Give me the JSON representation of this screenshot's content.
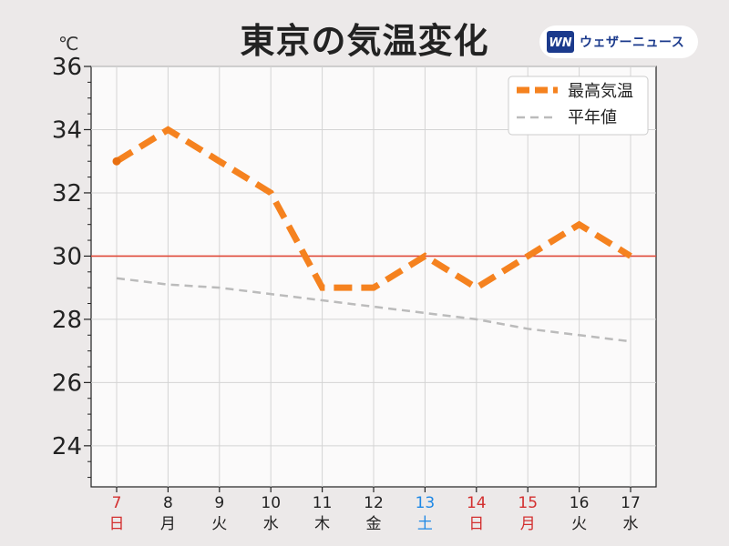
{
  "brand": {
    "logo_text": "ウェザーニュース",
    "accent": "#1b3a8c"
  },
  "chart_data": {
    "type": "line",
    "title": "東京の気温変化",
    "unit": "℃",
    "ylim": [
      22.7,
      36
    ],
    "yticks": [
      24,
      26,
      28,
      30,
      32,
      34,
      36
    ],
    "grid": true,
    "legend_position": "top-right",
    "categories": [
      {
        "day": "7",
        "weekday": "日",
        "color": "#d32f2f"
      },
      {
        "day": "8",
        "weekday": "月",
        "color": "#222222"
      },
      {
        "day": "9",
        "weekday": "火",
        "color": "#222222"
      },
      {
        "day": "10",
        "weekday": "水",
        "color": "#222222"
      },
      {
        "day": "11",
        "weekday": "木",
        "color": "#222222"
      },
      {
        "day": "12",
        "weekday": "金",
        "color": "#222222"
      },
      {
        "day": "13",
        "weekday": "土",
        "color": "#1e88e5"
      },
      {
        "day": "14",
        "weekday": "日",
        "color": "#d32f2f"
      },
      {
        "day": "15",
        "weekday": "月",
        "color": "#d32f2f"
      },
      {
        "day": "16",
        "weekday": "火",
        "color": "#222222"
      },
      {
        "day": "17",
        "weekday": "水",
        "color": "#222222"
      }
    ],
    "series": [
      {
        "name": "最高気温",
        "color": "#f5821f",
        "style": "dashed-thick",
        "values": [
          33,
          34,
          33,
          32,
          29,
          29,
          30,
          29,
          30,
          31,
          30
        ]
      },
      {
        "name": "平年値",
        "color": "#bbbbbb",
        "style": "dashed-thin",
        "values": [
          29.3,
          29.1,
          29.0,
          28.8,
          28.6,
          28.4,
          28.2,
          28.0,
          27.7,
          27.5,
          27.3
        ]
      }
    ],
    "reference_line": {
      "value": 30,
      "color": "#e04a3a"
    }
  }
}
